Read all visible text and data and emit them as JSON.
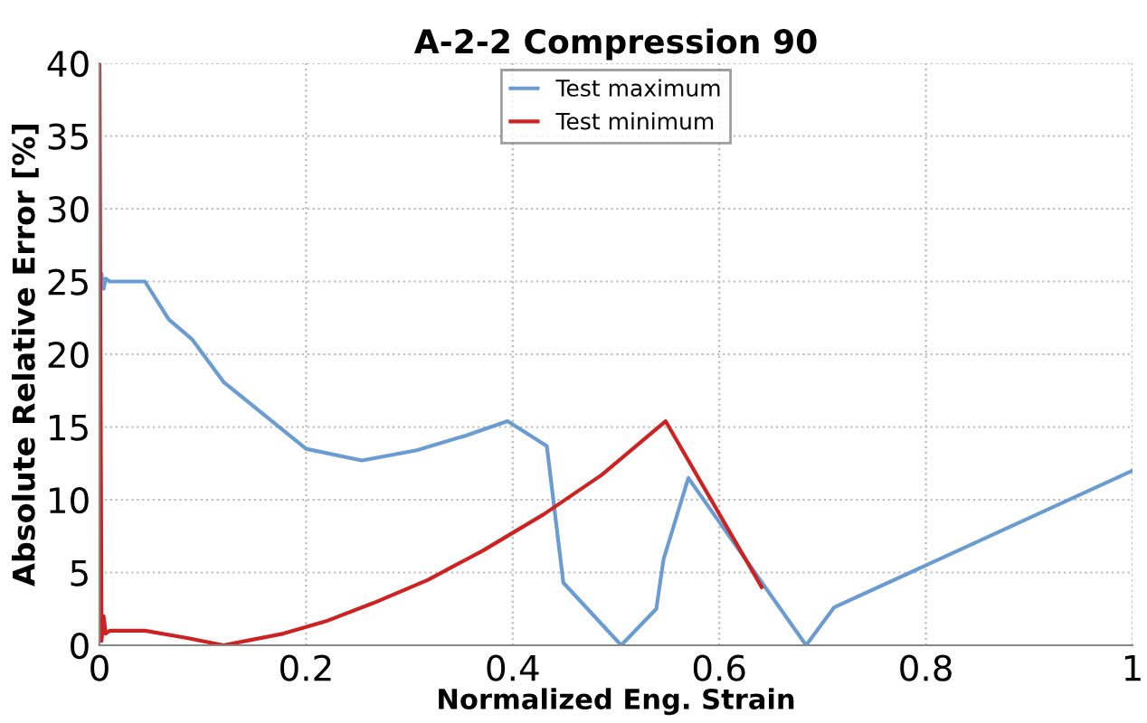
{
  "chart_data": {
    "type": "line",
    "title": "A-2-2 Compression 90",
    "xlabel": "Normalized Eng. Strain",
    "ylabel": "Absolute Relative Error [%]",
    "xlim": [
      0,
      1
    ],
    "xticks": [
      0,
      0.2,
      0.4,
      0.6,
      0.8,
      1
    ],
    "ylim": [
      0,
      40
    ],
    "yticks": [
      0,
      5,
      10,
      15,
      20,
      25,
      30,
      35,
      40
    ],
    "grid": true,
    "legend": "top",
    "line_style": "solid",
    "marker": "none",
    "series": [
      {
        "name": "Test maximum",
        "color": "#6a9bd1",
        "x": [
          0.002,
          0.004,
          0.006,
          0.01,
          0.044,
          0.067,
          0.09,
          0.12,
          0.16,
          0.2,
          0.254,
          0.307,
          0.354,
          0.395,
          0.433,
          0.449,
          0.505,
          0.539,
          0.546,
          0.57,
          0.684,
          0.711,
          1.0
        ],
        "values": [
          25.5,
          24.5,
          25.2,
          25,
          25,
          22.4,
          21.0,
          18.1,
          15.8,
          13.5,
          12.7,
          13.4,
          14.4,
          15.4,
          13.7,
          4.3,
          0,
          2.5,
          5.9,
          11.5,
          0,
          2.6,
          12.0
        ]
      },
      {
        "name": "Test minimum",
        "color": "#cc2222",
        "x": [
          0,
          0.002,
          0.004,
          0.006,
          0.01,
          0.044,
          0.085,
          0.12,
          0.178,
          0.221,
          0.265,
          0.318,
          0.371,
          0.43,
          0.486,
          0.548,
          0.641
        ],
        "values": [
          40,
          0.3,
          2,
          0.8,
          1.0,
          1.0,
          0.5,
          0,
          0.8,
          1.7,
          2.9,
          4.5,
          6.5,
          9.0,
          11.7,
          15.4,
          4.0
        ]
      }
    ]
  }
}
